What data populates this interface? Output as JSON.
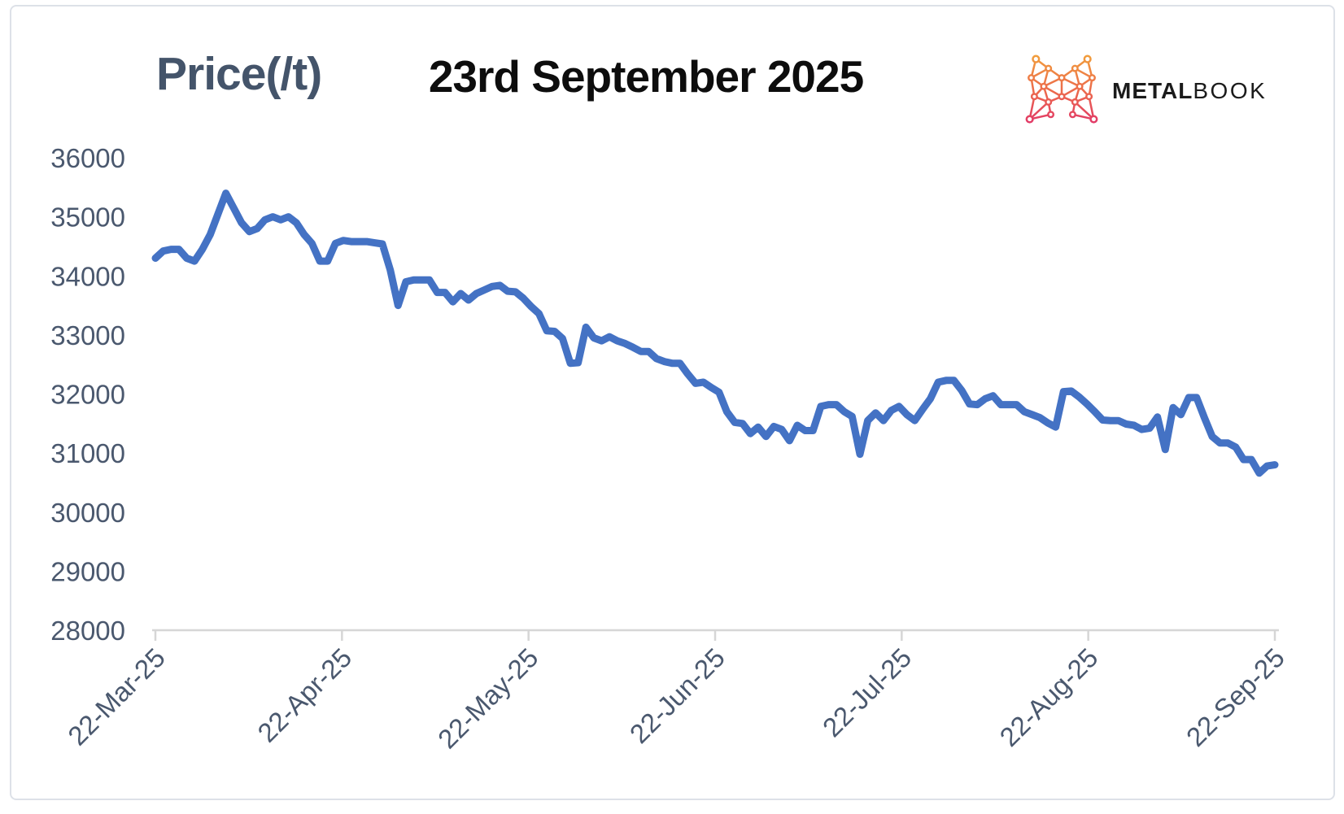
{
  "header": {
    "axis_title": "Price(/t)",
    "date_title": "23rd September 2025"
  },
  "brand": {
    "icon": "metalbook-m-network-logo",
    "name_bold": "METAL",
    "name_light": "BOOK",
    "icon_gradient_top": "#F2A33B",
    "icon_gradient_bottom": "#DF2F6E"
  },
  "chart_data": {
    "type": "line",
    "title": "23rd September 2025",
    "y_axis_title": "Price(/t)",
    "xlabel": "",
    "ylabel": "Price(/t)",
    "ylim": [
      28000,
      36000
    ],
    "y_ticks": [
      36000,
      35000,
      34000,
      33000,
      32000,
      31000,
      30000,
      29000,
      28000
    ],
    "x_tick_labels": [
      "22-Mar-25",
      "22-Apr-25",
      "22-May-25",
      "22-Jun-25",
      "22-Jul-25",
      "22-Aug-25",
      "22-Sep-25"
    ],
    "grid": false,
    "legend_position": "none",
    "colors": {
      "line": "#4472C4",
      "axis_labels": "#4a586e",
      "axis_line": "#d6d6d6",
      "title": "#44546A"
    },
    "series": [
      {
        "name": "Price",
        "color": "#4472C4",
        "values": [
          34300,
          34420,
          34450,
          34450,
          34300,
          34250,
          34450,
          34700,
          35050,
          35400,
          35150,
          34900,
          34750,
          34800,
          34950,
          35000,
          34950,
          35000,
          34900,
          34700,
          34550,
          34250,
          34250,
          34550,
          34600,
          34580,
          34580,
          34580,
          34560,
          34540,
          34100,
          33500,
          33900,
          33930,
          33930,
          33930,
          33720,
          33720,
          33560,
          33700,
          33590,
          33700,
          33760,
          33820,
          33840,
          33740,
          33730,
          33620,
          33480,
          33360,
          33070,
          33060,
          32940,
          32520,
          32530,
          33130,
          32950,
          32900,
          32970,
          32900,
          32855,
          32790,
          32720,
          32720,
          32600,
          32550,
          32520,
          32520,
          32340,
          32180,
          32200,
          32110,
          32030,
          31700,
          31520,
          31500,
          31330,
          31440,
          31280,
          31450,
          31400,
          31210,
          31470,
          31380,
          31380,
          31790,
          31820,
          31820,
          31700,
          31620,
          30980,
          31550,
          31680,
          31550,
          31720,
          31790,
          31650,
          31550,
          31740,
          31920,
          32200,
          32230,
          32230,
          32060,
          31830,
          31820,
          31920,
          31970,
          31820,
          31820,
          31820,
          31700,
          31650,
          31600,
          31510,
          31440,
          32040,
          32050,
          31950,
          31830,
          31700,
          31560,
          31550,
          31550,
          31490,
          31470,
          31400,
          31420,
          31610,
          31060,
          31770,
          31650,
          31940,
          31940,
          31600,
          31280,
          31170,
          31170,
          31100,
          30890,
          30890,
          30660,
          30780,
          30800
        ]
      }
    ]
  }
}
